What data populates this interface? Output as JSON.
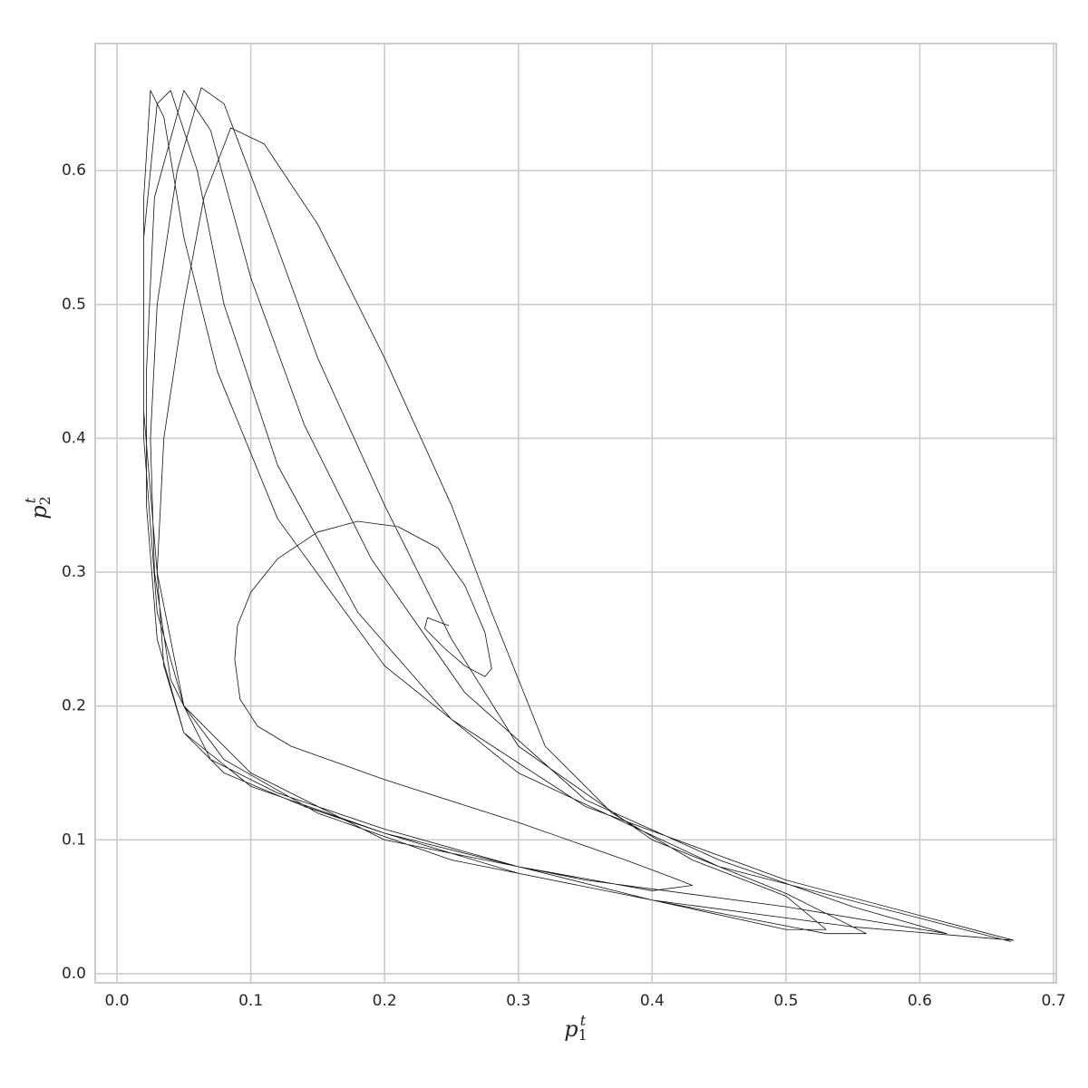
{
  "chart_data": {
    "type": "line",
    "xlabel": {
      "text": "p",
      "subscript": "1",
      "superscript": "t"
    },
    "ylabel": {
      "text": "p",
      "subscript": "2",
      "superscript": "t"
    },
    "xlim": [
      -0.0163,
      0.702
    ],
    "ylim": [
      -0.0068,
      0.695
    ],
    "xticks": [
      {
        "value": 0,
        "label": "0.0"
      },
      0.1,
      0.2,
      0.3,
      0.4,
      0.5,
      0.6,
      0.7
    ],
    "yticks": [
      {
        "value": 0,
        "label": "0.0"
      },
      0.1,
      0.2,
      0.3,
      0.4,
      0.5,
      0.6
    ],
    "grid": true,
    "color": "#111111",
    "x": [
      0.248,
      0.232,
      0.23,
      0.245,
      0.26,
      0.275,
      0.28,
      0.275,
      0.26,
      0.24,
      0.21,
      0.18,
      0.15,
      0.12,
      0.1,
      0.09,
      0.088,
      0.092,
      0.105,
      0.13,
      0.2,
      0.3,
      0.38,
      0.42,
      0.43,
      0.4,
      0.3,
      0.2,
      0.14,
      0.08,
      0.05,
      0.035,
      0.03,
      0.035,
      0.05,
      0.065,
      0.085,
      0.11,
      0.15,
      0.2,
      0.25,
      0.28,
      0.32,
      0.37,
      0.43,
      0.5,
      0.53,
      0.5,
      0.4,
      0.3,
      0.2,
      0.12,
      0.07,
      0.04,
      0.028,
      0.025,
      0.03,
      0.045,
      0.063,
      0.08,
      0.11,
      0.15,
      0.2,
      0.25,
      0.3,
      0.4,
      0.5,
      0.56,
      0.53,
      0.4,
      0.3,
      0.2,
      0.1,
      0.05,
      0.03,
      0.022,
      0.022,
      0.028,
      0.05,
      0.07,
      0.1,
      0.14,
      0.19,
      0.26,
      0.35,
      0.45,
      0.55,
      0.62,
      0.5,
      0.35,
      0.2,
      0.1,
      0.05,
      0.03,
      0.02,
      0.02,
      0.03,
      0.04,
      0.06,
      0.08,
      0.12,
      0.18,
      0.25,
      0.35,
      0.5,
      0.67,
      0.55,
      0.4,
      0.25,
      0.15,
      0.08,
      0.05,
      0.03,
      0.02,
      0.02,
      0.025,
      0.035,
      0.05,
      0.075,
      0.12,
      0.2,
      0.3,
      0.45,
      0.668
    ],
    "y": [
      0.26,
      0.266,
      0.258,
      0.243,
      0.23,
      0.222,
      0.228,
      0.255,
      0.29,
      0.318,
      0.334,
      0.338,
      0.33,
      0.31,
      0.285,
      0.26,
      0.235,
      0.205,
      0.185,
      0.17,
      0.145,
      0.113,
      0.085,
      0.07,
      0.066,
      0.062,
      0.08,
      0.105,
      0.125,
      0.15,
      0.18,
      0.23,
      0.3,
      0.4,
      0.5,
      0.58,
      0.632,
      0.62,
      0.56,
      0.46,
      0.35,
      0.27,
      0.17,
      0.12,
      0.085,
      0.058,
      0.033,
      0.033,
      0.055,
      0.08,
      0.108,
      0.135,
      0.16,
      0.22,
      0.3,
      0.4,
      0.5,
      0.6,
      0.662,
      0.65,
      0.57,
      0.46,
      0.35,
      0.25,
      0.17,
      0.1,
      0.06,
      0.03,
      0.03,
      0.055,
      0.075,
      0.105,
      0.14,
      0.18,
      0.25,
      0.35,
      0.45,
      0.58,
      0.66,
      0.63,
      0.52,
      0.41,
      0.31,
      0.21,
      0.13,
      0.085,
      0.05,
      0.03,
      0.05,
      0.07,
      0.1,
      0.15,
      0.2,
      0.27,
      0.4,
      0.55,
      0.65,
      0.66,
      0.6,
      0.5,
      0.38,
      0.27,
      0.19,
      0.125,
      0.07,
      0.025,
      0.035,
      0.055,
      0.085,
      0.12,
      0.16,
      0.2,
      0.3,
      0.42,
      0.58,
      0.66,
      0.64,
      0.55,
      0.45,
      0.34,
      0.23,
      0.15,
      0.08,
      0.024
    ]
  }
}
